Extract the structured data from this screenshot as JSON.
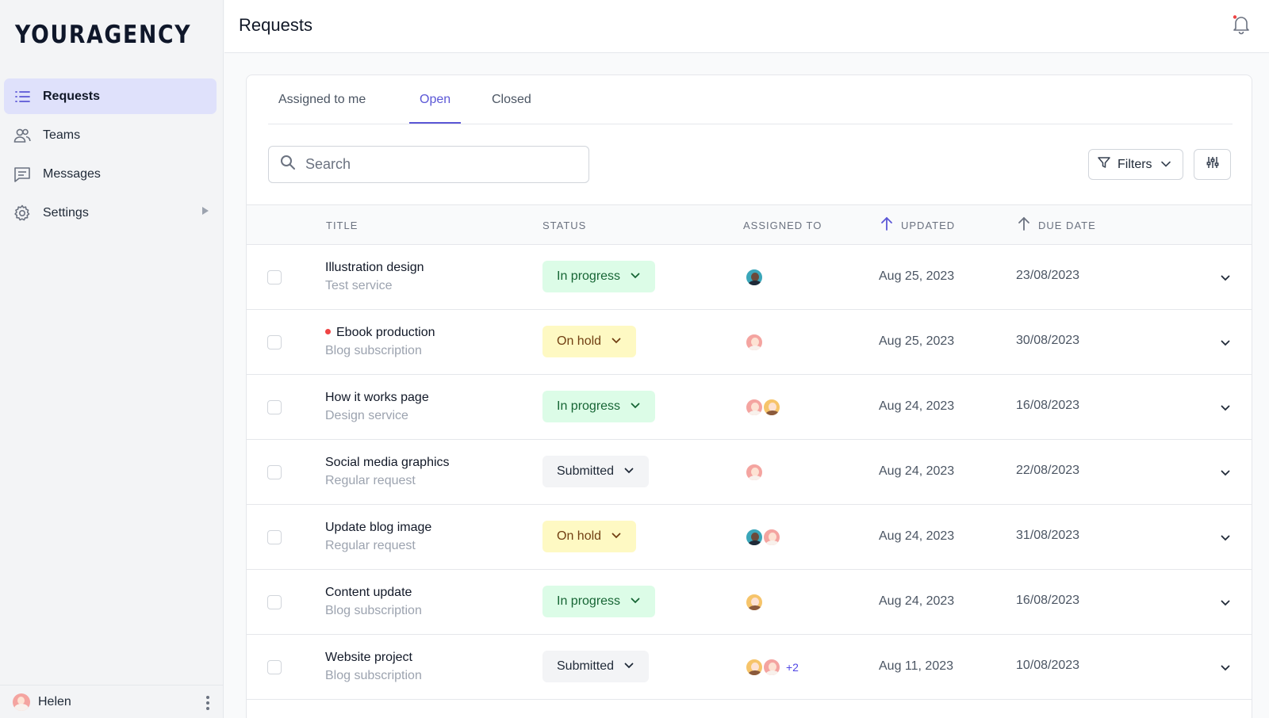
{
  "brand": {
    "logo": "YOURAGENCY"
  },
  "sidebar": {
    "items": [
      {
        "label": "Requests",
        "icon": "list-icon",
        "active": true
      },
      {
        "label": "Teams",
        "icon": "users-icon"
      },
      {
        "label": "Messages",
        "icon": "chat-icon"
      },
      {
        "label": "Settings",
        "icon": "gear-icon"
      }
    ],
    "user": {
      "name": "Helen"
    }
  },
  "header": {
    "title": "Requests"
  },
  "tabs": [
    {
      "label": "Assigned to me"
    },
    {
      "label": "Open",
      "active": true
    },
    {
      "label": "Closed"
    }
  ],
  "search": {
    "placeholder": "Search",
    "value": ""
  },
  "toolbar": {
    "filters_label": "Filters"
  },
  "table": {
    "columns": {
      "title": "TITLE",
      "status": "STATUS",
      "assigned": "ASSIGNED TO",
      "updated": "UPDATED",
      "due": "DUE DATE"
    },
    "rows": [
      {
        "title": "Illustration design",
        "subtitle": "Test service",
        "status": "In progress",
        "status_type": "progress",
        "assignees": [
          "teal"
        ],
        "extra": "",
        "updated": "Aug 25, 2023",
        "due": "23/08/2023",
        "unread": false
      },
      {
        "title": "Ebook production",
        "subtitle": "Blog subscription",
        "status": "On hold",
        "status_type": "hold",
        "assignees": [
          "pink"
        ],
        "extra": "",
        "updated": "Aug 25, 2023",
        "due": "30/08/2023",
        "unread": true
      },
      {
        "title": "How it works page",
        "subtitle": "Design service",
        "status": "In progress",
        "status_type": "progress",
        "assignees": [
          "pink",
          "gold"
        ],
        "extra": "",
        "updated": "Aug 24, 2023",
        "due": "16/08/2023",
        "unread": false
      },
      {
        "title": "Social media graphics",
        "subtitle": "Regular request",
        "status": "Submitted",
        "status_type": "submitted",
        "assignees": [
          "pink"
        ],
        "extra": "",
        "updated": "Aug 24, 2023",
        "due": "22/08/2023",
        "unread": false
      },
      {
        "title": "Update blog image",
        "subtitle": "Regular request",
        "status": "On hold",
        "status_type": "hold",
        "assignees": [
          "teal",
          "pink"
        ],
        "extra": "",
        "updated": "Aug 24, 2023",
        "due": "31/08/2023",
        "unread": false
      },
      {
        "title": "Content update",
        "subtitle": "Blog subscription",
        "status": "In progress",
        "status_type": "progress",
        "assignees": [
          "gold"
        ],
        "extra": "",
        "updated": "Aug 24, 2023",
        "due": "16/08/2023",
        "unread": false
      },
      {
        "title": "Website project",
        "subtitle": "Blog subscription",
        "status": "Submitted",
        "status_type": "submitted",
        "assignees": [
          "gold",
          "pink"
        ],
        "extra": "+2",
        "updated": "Aug 11, 2023",
        "due": "10/08/2023",
        "unread": false
      }
    ]
  },
  "colors": {
    "accent": "#5b57d6",
    "active_nav_bg": "#dfe1fb",
    "notification_dot": "#ef4444"
  }
}
